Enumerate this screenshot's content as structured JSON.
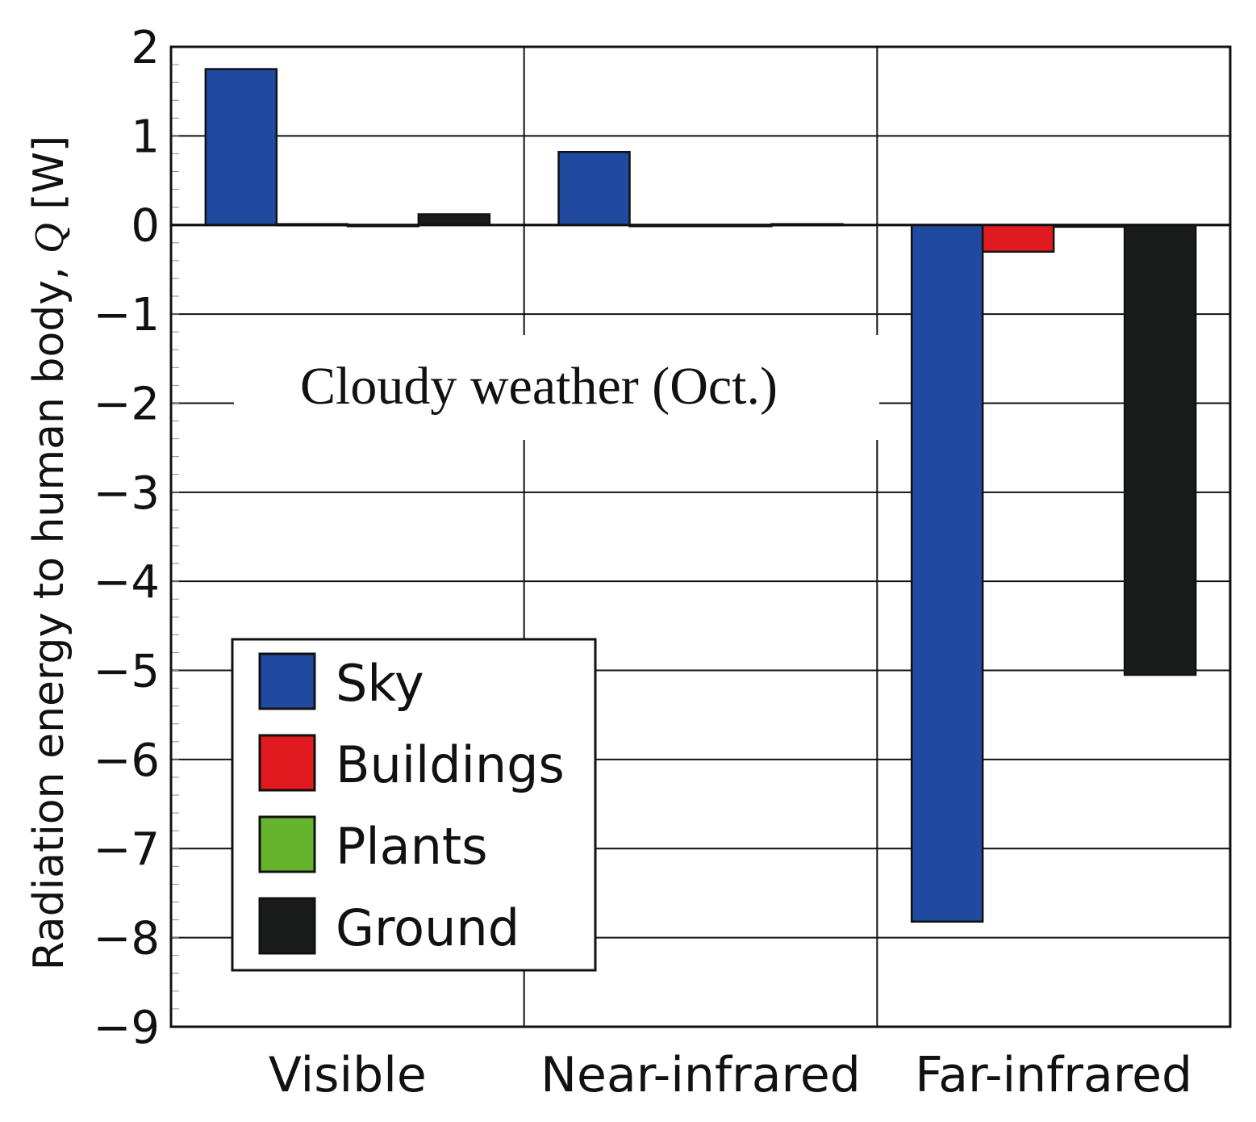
{
  "chart_data": {
    "type": "bar",
    "title": "",
    "annotation": "Cloudy weather (Oct.)",
    "xlabel": "",
    "ylabel": "Radiation energy to human body, ",
    "ylabel_symbol": "Q",
    "ylabel_unit": " [W]",
    "ylim": [
      -9,
      2
    ],
    "yticks": [
      2,
      1,
      0,
      -1,
      -2,
      -3,
      -4,
      -5,
      -6,
      -7,
      -8,
      -9
    ],
    "ytick_labels": [
      "2",
      "1",
      "0",
      "−1",
      "−2",
      "−3",
      "−4",
      "−5",
      "−6",
      "−7",
      "−8",
      "−9"
    ],
    "grid": true,
    "categories": [
      "Visible",
      "Near-infrared",
      "Far-infrared"
    ],
    "series": [
      {
        "name": "Sky",
        "color": "#1f4aa0",
        "values": [
          1.75,
          0.82,
          -7.82
        ]
      },
      {
        "name": "Buildings",
        "color": "#e01a1f",
        "values": [
          0.01,
          0.0,
          -0.3
        ]
      },
      {
        "name": "Plants",
        "color": "#66b32e",
        "values": [
          0.0,
          0.0,
          -0.02
        ]
      },
      {
        "name": "Ground",
        "color": "#1a1c1b",
        "values": [
          0.12,
          0.01,
          -5.05
        ]
      }
    ],
    "legend_position": "bottom-left"
  }
}
